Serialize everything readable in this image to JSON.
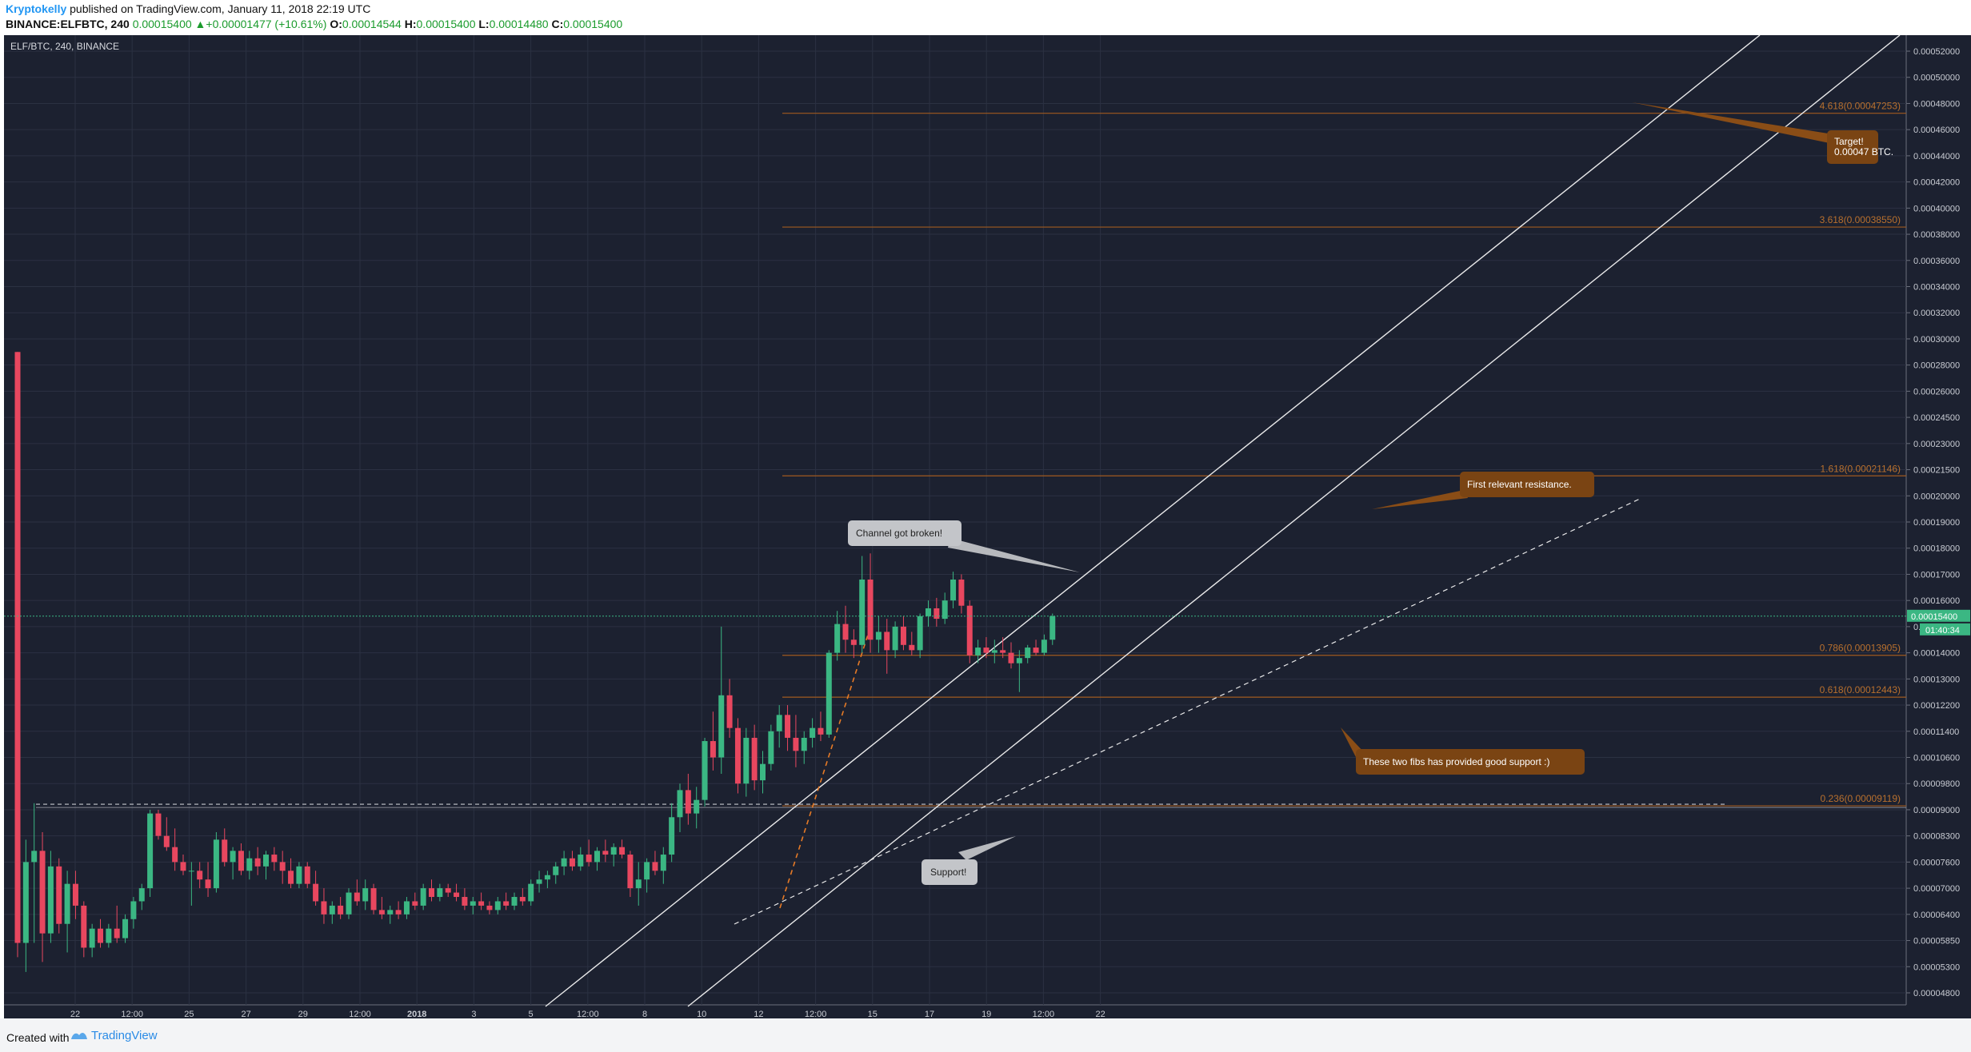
{
  "header": {
    "author": "Kryptokelly",
    "published": "published on TradingView.com, January 11, 2018 22:19 UTC",
    "symbol": "BINANCE:ELFBTC, 240",
    "last": "0.00015400",
    "change": "+0.00001477 (+10.61%)",
    "o_label": "O:",
    "o_value": "0.00014544",
    "h_label": "H:",
    "h_value": "0.00015400",
    "l_label": "L:",
    "l_value": "0.00014480",
    "c_label": "C:",
    "c_value": "0.00015400"
  },
  "footer": {
    "created": "Created with",
    "brand": "TradingView"
  },
  "colors": {
    "background": "#1c2130",
    "grid": "#2b3142",
    "up": "#3bb783",
    "down": "#e8475f",
    "fib": "#a05a1f",
    "fib_text": "#b8702e",
    "callout_brown": "#7a4413",
    "callout_grey": "#b7b9bd"
  },
  "chart_data": {
    "type": "candlestick",
    "title": "ELF/BTC, 240, BINANCE",
    "y_axis_ticks": [
      "0.00052000",
      "0.00050000",
      "0.00048000",
      "0.00046000",
      "0.00044000",
      "0.00042000",
      "0.00040000",
      "0.00038000",
      "0.00036000",
      "0.00034000",
      "0.00032000",
      "0.00030000",
      "0.00028000",
      "0.00026000",
      "0.00024500",
      "0.00023000",
      "0.00021500",
      "0.00020000",
      "0.00019000",
      "0.00018000",
      "0.00017000",
      "0.00016000",
      "0.00015000",
      "0.00014000",
      "0.00013000",
      "0.00012200",
      "0.00011400",
      "0.00010600",
      "0.00009800",
      "0.00009000",
      "0.00008300",
      "0.00007600",
      "0.00007000",
      "0.00006400",
      "0.00005850",
      "0.00005300",
      "0.00004800"
    ],
    "x_axis_ticks": [
      "22",
      "12:00",
      "25",
      "27",
      "29",
      "12:00",
      "2018",
      "3",
      "5",
      "12:00",
      "8",
      "10",
      "12",
      "12:00",
      "15",
      "17",
      "19",
      "12:00",
      "22"
    ],
    "last_price_label": "0.00015400",
    "countdown_label": "01:40:34",
    "fib_levels": [
      {
        "label": "4.618(0.00047253)",
        "price": 0.00047253
      },
      {
        "label": "3.618(0.00038550)",
        "price": 0.0003855
      },
      {
        "label": "1.618(0.00021146)",
        "price": 0.00021146
      },
      {
        "label": "0.786(0.00013905)",
        "price": 0.00013905
      },
      {
        "label": "0.618(0.00012443)",
        "price": 0.00012443
      },
      {
        "label": "0.236(0.00009119)",
        "price": 9.119e-05
      }
    ],
    "callouts": [
      {
        "text": "Target!",
        "text2": "0.00047 BTC."
      },
      {
        "text": "First relevant resistance."
      },
      {
        "text": "Channel got broken!"
      },
      {
        "text": "These two fibs has provided good support :)"
      },
      {
        "text": "Support!"
      }
    ],
    "candles": [
      {
        "o": 0.00029,
        "h": 0.00029,
        "l": 5.5e-05,
        "c": 5.8e-05
      },
      {
        "o": 5.8e-05,
        "h": 8.2e-05,
        "l": 5.2e-05,
        "c": 7.6e-05
      },
      {
        "o": 7.6e-05,
        "h": 9.2e-05,
        "l": 5.8e-05,
        "c": 7.9e-05
      },
      {
        "o": 7.9e-05,
        "h": 8.4e-05,
        "l": 5.4e-05,
        "c": 6e-05
      },
      {
        "o": 6e-05,
        "h": 7.9e-05,
        "l": 5.8e-05,
        "c": 7.5e-05
      },
      {
        "o": 7.5e-05,
        "h": 7.7e-05,
        "l": 6e-05,
        "c": 6.2e-05
      },
      {
        "o": 6.2e-05,
        "h": 7.4e-05,
        "l": 5.6e-05,
        "c": 7.1e-05
      },
      {
        "o": 7.1e-05,
        "h": 7.4e-05,
        "l": 6.3e-05,
        "c": 6.6e-05
      },
      {
        "o": 6.6e-05,
        "h": 6.7e-05,
        "l": 5.5e-05,
        "c": 5.7e-05
      },
      {
        "o": 5.7e-05,
        "h": 6.2e-05,
        "l": 5.5e-05,
        "c": 6.1e-05
      },
      {
        "o": 6.1e-05,
        "h": 6.3e-05,
        "l": 5.7e-05,
        "c": 5.8e-05
      },
      {
        "o": 5.8e-05,
        "h": 6.2e-05,
        "l": 5.7e-05,
        "c": 6.1e-05
      },
      {
        "o": 6.1e-05,
        "h": 6.6e-05,
        "l": 5.8e-05,
        "c": 5.9e-05
      },
      {
        "o": 5.9e-05,
        "h": 6.4e-05,
        "l": 5.8e-05,
        "c": 6.3e-05
      },
      {
        "o": 6.3e-05,
        "h": 6.8e-05,
        "l": 6.1e-05,
        "c": 6.7e-05
      },
      {
        "o": 6.7e-05,
        "h": 7.1e-05,
        "l": 6.5e-05,
        "c": 7e-05
      },
      {
        "o": 7e-05,
        "h": 9e-05,
        "l": 6.8e-05,
        "c": 8.9e-05
      },
      {
        "o": 8.9e-05,
        "h": 9e-05,
        "l": 8.2e-05,
        "c": 8.3e-05
      },
      {
        "o": 8.3e-05,
        "h": 8.8e-05,
        "l": 7.9e-05,
        "c": 8e-05
      },
      {
        "o": 8e-05,
        "h": 8.5e-05,
        "l": 7.4e-05,
        "c": 7.6e-05
      },
      {
        "o": 7.6e-05,
        "h": 7.8e-05,
        "l": 7.3e-05,
        "c": 7.4e-05
      },
      {
        "o": 7.4e-05,
        "h": 7.6e-05,
        "l": 6.6e-05,
        "c": 7.4e-05
      },
      {
        "o": 7.4e-05,
        "h": 7.6e-05,
        "l": 7e-05,
        "c": 7.2e-05
      },
      {
        "o": 7.2e-05,
        "h": 7.6e-05,
        "l": 6.8e-05,
        "c": 7e-05
      },
      {
        "o": 7e-05,
        "h": 8.4e-05,
        "l": 6.9e-05,
        "c": 8.2e-05
      },
      {
        "o": 8.2e-05,
        "h": 8.5e-05,
        "l": 7.5e-05,
        "c": 7.6e-05
      },
      {
        "o": 7.6e-05,
        "h": 8e-05,
        "l": 7.2e-05,
        "c": 7.9e-05
      },
      {
        "o": 7.9e-05,
        "h": 8.1e-05,
        "l": 7.3e-05,
        "c": 7.4e-05
      },
      {
        "o": 7.4e-05,
        "h": 7.9e-05,
        "l": 7.2e-05,
        "c": 7.7e-05
      },
      {
        "o": 7.7e-05,
        "h": 8e-05,
        "l": 7.3e-05,
        "c": 7.5e-05
      },
      {
        "o": 7.5e-05,
        "h": 7.9e-05,
        "l": 7.2e-05,
        "c": 7.8e-05
      },
      {
        "o": 7.8e-05,
        "h": 8e-05,
        "l": 7.4e-05,
        "c": 7.6e-05
      },
      {
        "o": 7.6e-05,
        "h": 7.9e-05,
        "l": 7.1e-05,
        "c": 7.4e-05
      },
      {
        "o": 7.4e-05,
        "h": 7.7e-05,
        "l": 7e-05,
        "c": 7.1e-05
      },
      {
        "o": 7.1e-05,
        "h": 7.6e-05,
        "l": 7e-05,
        "c": 7.5e-05
      },
      {
        "o": 7.5e-05,
        "h": 7.6e-05,
        "l": 7e-05,
        "c": 7.1e-05
      },
      {
        "o": 7.1e-05,
        "h": 7.4e-05,
        "l": 6.6e-05,
        "c": 6.7e-05
      },
      {
        "o": 6.7e-05,
        "h": 7e-05,
        "l": 6.2e-05,
        "c": 6.4e-05
      },
      {
        "o": 6.4e-05,
        "h": 6.7e-05,
        "l": 6.2e-05,
        "c": 6.6e-05
      },
      {
        "o": 6.6e-05,
        "h": 6.8e-05,
        "l": 6.3e-05,
        "c": 6.4e-05
      },
      {
        "o": 6.4e-05,
        "h": 7e-05,
        "l": 6.3e-05,
        "c": 6.9e-05
      },
      {
        "o": 6.9e-05,
        "h": 7.2e-05,
        "l": 6.6e-05,
        "c": 6.7e-05
      },
      {
        "o": 6.7e-05,
        "h": 7.2e-05,
        "l": 6.5e-05,
        "c": 7e-05
      },
      {
        "o": 7e-05,
        "h": 7.1e-05,
        "l": 6.4e-05,
        "c": 6.5e-05
      },
      {
        "o": 6.5e-05,
        "h": 6.8e-05,
        "l": 6.3e-05,
        "c": 6.4e-05
      },
      {
        "o": 6.4e-05,
        "h": 6.6e-05,
        "l": 6.2e-05,
        "c": 6.5e-05
      },
      {
        "o": 6.5e-05,
        "h": 6.7e-05,
        "l": 6.3e-05,
        "c": 6.4e-05
      },
      {
        "o": 6.4e-05,
        "h": 6.8e-05,
        "l": 6.3e-05,
        "c": 6.7e-05
      },
      {
        "o": 6.7e-05,
        "h": 6.9e-05,
        "l": 6.5e-05,
        "c": 6.6e-05
      },
      {
        "o": 6.6e-05,
        "h": 7.1e-05,
        "l": 6.5e-05,
        "c": 7e-05
      },
      {
        "o": 7e-05,
        "h": 7.2e-05,
        "l": 6.7e-05,
        "c": 6.8e-05
      },
      {
        "o": 6.8e-05,
        "h": 7.1e-05,
        "l": 6.7e-05,
        "c": 7e-05
      },
      {
        "o": 7e-05,
        "h": 7.1e-05,
        "l": 6.8e-05,
        "c": 6.9e-05
      },
      {
        "o": 6.9e-05,
        "h": 7.1e-05,
        "l": 6.7e-05,
        "c": 6.8e-05
      },
      {
        "o": 6.8e-05,
        "h": 7e-05,
        "l": 6.5e-05,
        "c": 6.6e-05
      },
      {
        "o": 6.6e-05,
        "h": 6.8e-05,
        "l": 6.4e-05,
        "c": 6.7e-05
      },
      {
        "o": 6.7e-05,
        "h": 6.9e-05,
        "l": 6.5e-05,
        "c": 6.6e-05
      },
      {
        "o": 6.6e-05,
        "h": 6.7e-05,
        "l": 6.4e-05,
        "c": 6.5e-05
      },
      {
        "o": 6.5e-05,
        "h": 6.8e-05,
        "l": 6.4e-05,
        "c": 6.7e-05
      },
      {
        "o": 6.7e-05,
        "h": 6.9e-05,
        "l": 6.5e-05,
        "c": 6.6e-05
      },
      {
        "o": 6.6e-05,
        "h": 6.9e-05,
        "l": 6.5e-05,
        "c": 6.8e-05
      },
      {
        "o": 6.8e-05,
        "h": 7e-05,
        "l": 6.6e-05,
        "c": 6.7e-05
      },
      {
        "o": 6.7e-05,
        "h": 7.2e-05,
        "l": 6.6e-05,
        "c": 7.1e-05
      },
      {
        "o": 7.1e-05,
        "h": 7.4e-05,
        "l": 6.9e-05,
        "c": 7.2e-05
      },
      {
        "o": 7.2e-05,
        "h": 7.4e-05,
        "l": 7e-05,
        "c": 7.3e-05
      },
      {
        "o": 7.3e-05,
        "h": 7.6e-05,
        "l": 7.1e-05,
        "c": 7.5e-05
      },
      {
        "o": 7.5e-05,
        "h": 7.9e-05,
        "l": 7.3e-05,
        "c": 7.7e-05
      },
      {
        "o": 7.7e-05,
        "h": 7.9e-05,
        "l": 7.4e-05,
        "c": 7.5e-05
      },
      {
        "o": 7.5e-05,
        "h": 8e-05,
        "l": 7.4e-05,
        "c": 7.8e-05
      },
      {
        "o": 7.8e-05,
        "h": 8.2e-05,
        "l": 7.5e-05,
        "c": 7.6e-05
      },
      {
        "o": 7.6e-05,
        "h": 8e-05,
        "l": 7.4e-05,
        "c": 7.9e-05
      },
      {
        "o": 7.9e-05,
        "h": 8.2e-05,
        "l": 7.6e-05,
        "c": 7.8e-05
      },
      {
        "o": 7.8e-05,
        "h": 8.1e-05,
        "l": 7.5e-05,
        "c": 8e-05
      },
      {
        "o": 8e-05,
        "h": 8.2e-05,
        "l": 7.7e-05,
        "c": 7.8e-05
      },
      {
        "o": 7.8e-05,
        "h": 7.9e-05,
        "l": 6.8e-05,
        "c": 7e-05
      },
      {
        "o": 7e-05,
        "h": 7.6e-05,
        "l": 6.6e-05,
        "c": 7.2e-05
      },
      {
        "o": 7.2e-05,
        "h": 7.7e-05,
        "l": 6.9e-05,
        "c": 7.6e-05
      },
      {
        "o": 7.6e-05,
        "h": 7.9e-05,
        "l": 7.3e-05,
        "c": 7.4e-05
      },
      {
        "o": 7.4e-05,
        "h": 8e-05,
        "l": 7.1e-05,
        "c": 7.8e-05
      },
      {
        "o": 7.8e-05,
        "h": 9.2e-05,
        "l": 7.6e-05,
        "c": 8.8e-05
      },
      {
        "o": 8.8e-05,
        "h": 9.8e-05,
        "l": 8.4e-05,
        "c": 9.6e-05
      },
      {
        "o": 9.6e-05,
        "h": 0.000101,
        "l": 8.6e-05,
        "c": 8.9e-05
      },
      {
        "o": 8.9e-05,
        "h": 9.7e-05,
        "l": 8.5e-05,
        "c": 9.3e-05
      },
      {
        "o": 9.3e-05,
        "h": 0.000112,
        "l": 9.1e-05,
        "c": 0.000111
      },
      {
        "o": 0.000111,
        "h": 0.00012,
        "l": 0.000102,
        "c": 0.000106
      },
      {
        "o": 0.000106,
        "h": 0.00015,
        "l": 0.000101,
        "c": 0.000125
      },
      {
        "o": 0.000125,
        "h": 0.00013,
        "l": 0.000112,
        "c": 0.000115
      },
      {
        "o": 0.000115,
        "h": 0.000118,
        "l": 9.5e-05,
        "c": 9.8e-05
      },
      {
        "o": 9.8e-05,
        "h": 0.000115,
        "l": 9.4e-05,
        "c": 0.000112
      },
      {
        "o": 0.000112,
        "h": 0.000116,
        "l": 9.6e-05,
        "c": 9.9e-05
      },
      {
        "o": 9.9e-05,
        "h": 0.000108,
        "l": 9.5e-05,
        "c": 0.000104
      },
      {
        "o": 0.000104,
        "h": 0.000116,
        "l": 0.000102,
        "c": 0.000114
      },
      {
        "o": 0.000114,
        "h": 0.000122,
        "l": 0.000109,
        "c": 0.000119
      },
      {
        "o": 0.000119,
        "h": 0.000122,
        "l": 0.000108,
        "c": 0.000112
      },
      {
        "o": 0.000112,
        "h": 0.000119,
        "l": 0.000103,
        "c": 0.000108
      },
      {
        "o": 0.000108,
        "h": 0.000114,
        "l": 0.000104,
        "c": 0.000112
      },
      {
        "o": 0.000112,
        "h": 0.000118,
        "l": 0.000109,
        "c": 0.000115
      },
      {
        "o": 0.000115,
        "h": 0.00012,
        "l": 0.000111,
        "c": 0.000113
      },
      {
        "o": 0.000113,
        "h": 0.000141,
        "l": 0.000112,
        "c": 0.00014
      },
      {
        "o": 0.00014,
        "h": 0.000156,
        "l": 0.000137,
        "c": 0.000151
      },
      {
        "o": 0.000151,
        "h": 0.000158,
        "l": 0.00014,
        "c": 0.000145
      },
      {
        "o": 0.000145,
        "h": 0.000149,
        "l": 0.000138,
        "c": 0.000143
      },
      {
        "o": 0.000143,
        "h": 0.000177,
        "l": 0.00014,
        "c": 0.000168
      },
      {
        "o": 0.000168,
        "h": 0.000178,
        "l": 0.00014,
        "c": 0.000145
      },
      {
        "o": 0.000145,
        "h": 0.000154,
        "l": 0.00014,
        "c": 0.000148
      },
      {
        "o": 0.000148,
        "h": 0.000153,
        "l": 0.000132,
        "c": 0.000141
      },
      {
        "o": 0.000141,
        "h": 0.000152,
        "l": 0.000138,
        "c": 0.00015
      },
      {
        "o": 0.00015,
        "h": 0.000154,
        "l": 0.000141,
        "c": 0.000143
      },
      {
        "o": 0.000143,
        "h": 0.000148,
        "l": 0.000139,
        "c": 0.000141
      },
      {
        "o": 0.000141,
        "h": 0.000155,
        "l": 0.000138,
        "c": 0.000154
      },
      {
        "o": 0.000154,
        "h": 0.00016,
        "l": 0.00015,
        "c": 0.000157
      },
      {
        "o": 0.000157,
        "h": 0.000161,
        "l": 0.00015,
        "c": 0.000153
      },
      {
        "o": 0.000153,
        "h": 0.000163,
        "l": 0.000151,
        "c": 0.00016
      },
      {
        "o": 0.00016,
        "h": 0.000171,
        "l": 0.000157,
        "c": 0.000168
      },
      {
        "o": 0.000168,
        "h": 0.00017,
        "l": 0.000155,
        "c": 0.000158
      },
      {
        "o": 0.000158,
        "h": 0.00016,
        "l": 0.000136,
        "c": 0.000139
      },
      {
        "o": 0.000139,
        "h": 0.000145,
        "l": 0.000136,
        "c": 0.000142
      },
      {
        "o": 0.000142,
        "h": 0.000146,
        "l": 0.000138,
        "c": 0.00014
      },
      {
        "o": 0.00014,
        "h": 0.000145,
        "l": 0.000136,
        "c": 0.000141
      },
      {
        "o": 0.000141,
        "h": 0.000146,
        "l": 0.000138,
        "c": 0.00014
      },
      {
        "o": 0.00014,
        "h": 0.000144,
        "l": 0.000134,
        "c": 0.000136
      },
      {
        "o": 0.000136,
        "h": 0.000141,
        "l": 0.000126,
        "c": 0.000138
      },
      {
        "o": 0.000138,
        "h": 0.000143,
        "l": 0.000136,
        "c": 0.000142
      },
      {
        "o": 0.000142,
        "h": 0.000145,
        "l": 0.000139,
        "c": 0.00014
      },
      {
        "o": 0.00014,
        "h": 0.000147,
        "l": 0.000139,
        "c": 0.000145
      },
      {
        "o": 0.000145,
        "h": 0.000155,
        "l": 0.000143,
        "c": 0.000154
      }
    ]
  }
}
